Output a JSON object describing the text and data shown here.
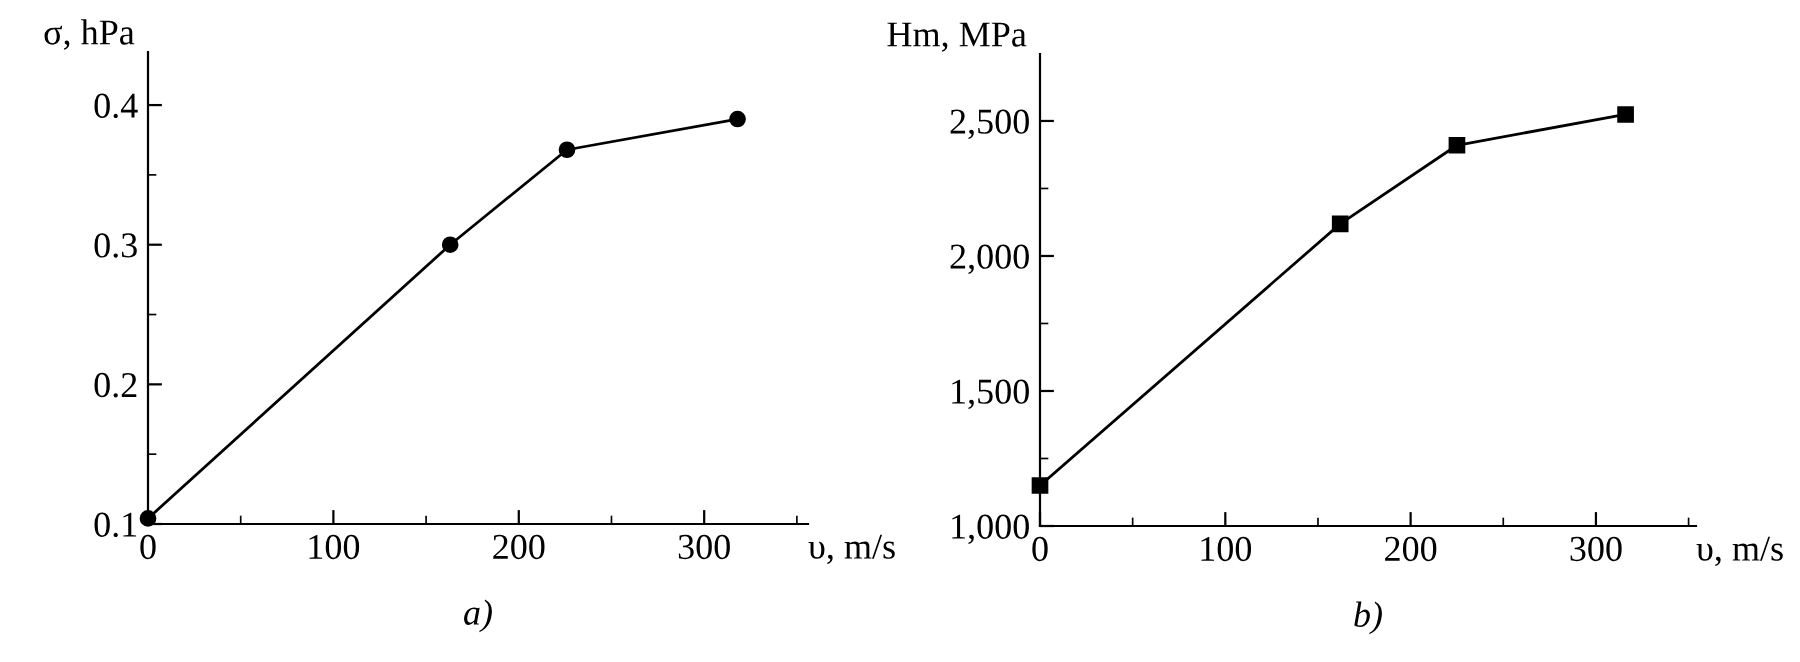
{
  "chart_data": [
    {
      "type": "line",
      "title": "a)",
      "xlabel": "υ, m/s",
      "ylabel": "σ, hPa",
      "marker": "circle",
      "x": [
        0,
        163,
        226,
        318
      ],
      "series": [
        {
          "color": "#000000",
          "values": [
            0.104,
            0.3,
            0.368,
            0.39
          ]
        }
      ],
      "xlim": [
        0,
        356
      ],
      "xticks": [
        0,
        100,
        200,
        300
      ],
      "ylim": [
        0.1,
        0.438
      ],
      "yticks": [
        0.1,
        0.2,
        0.3,
        0.4
      ],
      "grid": false,
      "legend": false
    },
    {
      "type": "line",
      "title": "b)",
      "xlabel": "υ, m/s",
      "ylabel": "Hm, MPa",
      "marker": "square",
      "x": [
        0,
        162,
        225,
        316
      ],
      "series": [
        {
          "color": "#000000",
          "values": [
            1150,
            2119,
            2410,
            2524
          ]
        }
      ],
      "xlim": [
        0,
        354
      ],
      "xticks": [
        0,
        100,
        200,
        300
      ],
      "ylim": [
        1000,
        2748
      ],
      "yticks": [
        {
          "value": 1000,
          "label": "1,000"
        },
        {
          "value": 1500,
          "label": "1,500"
        },
        {
          "value": 2000,
          "label": "2,000"
        },
        {
          "value": 2500,
          "label": "2,500"
        }
      ],
      "grid": false,
      "legend": false
    }
  ]
}
